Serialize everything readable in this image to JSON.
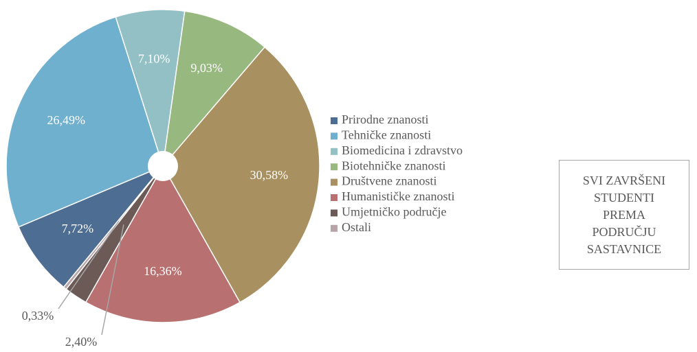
{
  "chart_data": {
    "type": "pie",
    "title": "SVI ZAVRŠENI STUDENTI PREMA PODRUČJU SASTAVNICE",
    "categories": [
      "Prirodne znanosti",
      "Tehničke znanosti",
      "Biomedicina i zdravstvo",
      "Biotehničke znanosti",
      "Društvene znanosti",
      "Humanističke znanosti",
      "Umjetničko područje",
      "Ostali"
    ],
    "values": [
      7.72,
      26.49,
      7.1,
      9.03,
      30.58,
      16.36,
      2.4,
      0.33
    ],
    "value_labels": [
      "7,72%",
      "26,49%",
      "7,10%",
      "9,03%",
      "30,58%",
      "16,36%",
      "2,40%",
      "0,33%"
    ],
    "colors": [
      "#4e6d92",
      "#6fb0cf",
      "#93c0c4",
      "#97b87f",
      "#a89060",
      "#b97070",
      "#6b5a55",
      "#b8a4a8"
    ],
    "legend": "right"
  }
}
